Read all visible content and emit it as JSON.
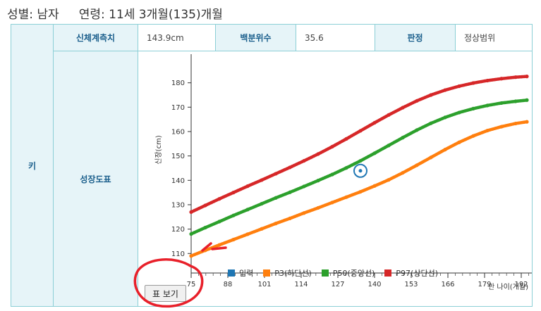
{
  "header": {
    "sex_label": "성별",
    "sex_value": "남자",
    "age_label": "연령",
    "age_value": "11세 3개월(135)개월"
  },
  "table": {
    "row_key": "키",
    "measure_label": "신체계측치",
    "measure_value": "143.9cm",
    "percentile_label": "백분위수",
    "percentile_value": "35.6",
    "judgement_label": "판정",
    "judgement_value": "정상범위",
    "growth_label": "성장도표"
  },
  "button": {
    "view_table": "표 보기"
  },
  "colors": {
    "input": "#1f77b4",
    "p3": "#ff7f0e",
    "p50": "#2ca02c",
    "p97": "#d62728",
    "accent": "#1b5f8c",
    "annotation": "#e8202a"
  },
  "chart_data": {
    "type": "line",
    "xlabel": "만 나이(개월)",
    "ylabel": "신장(cm)",
    "xlim": [
      75,
      195
    ],
    "ylim": [
      102,
      190
    ],
    "x_ticks": [
      75,
      88,
      101,
      114,
      127,
      140,
      153,
      166,
      179,
      192
    ],
    "y_ticks": [
      110,
      120,
      130,
      140,
      150,
      160,
      170,
      180
    ],
    "legend": [
      "입력",
      "P3(하단선)",
      "P50(중앙선)",
      "P97(상단선)"
    ],
    "legend_position": "bottom",
    "series": [
      {
        "name": "P3(하단선)",
        "x": [
          75,
          80,
          85,
          90,
          95,
          100,
          105,
          110,
          115,
          120,
          125,
          130,
          135,
          140,
          145,
          150,
          155,
          160,
          165,
          170,
          175,
          180,
          185,
          190,
          194
        ],
        "y": [
          109,
          111.3,
          113.5,
          115.7,
          117.9,
          120.1,
          122.3,
          124.4,
          126.6,
          128.7,
          130.9,
          133.1,
          135.3,
          137.7,
          140.2,
          143.1,
          146.2,
          149.4,
          152.6,
          155.6,
          158.2,
          160.4,
          162.0,
          163.3,
          164.0
        ]
      },
      {
        "name": "P50(중앙선)",
        "x": [
          75,
          80,
          85,
          90,
          95,
          100,
          105,
          110,
          115,
          120,
          125,
          130,
          135,
          140,
          145,
          150,
          155,
          160,
          165,
          170,
          175,
          180,
          185,
          190,
          194
        ],
        "y": [
          118,
          120.6,
          123.1,
          125.6,
          128.0,
          130.4,
          132.8,
          135.1,
          137.5,
          139.9,
          142.4,
          145.1,
          148.0,
          151.1,
          154.3,
          157.5,
          160.6,
          163.4,
          165.8,
          167.8,
          169.4,
          170.7,
          171.7,
          172.4,
          172.9
        ]
      },
      {
        "name": "P97(상단선)",
        "x": [
          75,
          80,
          85,
          90,
          95,
          100,
          105,
          110,
          115,
          120,
          125,
          130,
          135,
          140,
          145,
          150,
          155,
          160,
          165,
          170,
          175,
          180,
          185,
          190,
          194
        ],
        "y": [
          127,
          129.7,
          132.4,
          135.0,
          137.6,
          140.1,
          142.7,
          145.3,
          148.0,
          150.8,
          153.8,
          157.0,
          160.3,
          163.6,
          166.8,
          169.8,
          172.6,
          175.0,
          177.0,
          178.6,
          179.9,
          180.9,
          181.7,
          182.3,
          182.6
        ]
      }
    ],
    "input_point": {
      "x": 135,
      "y": 143.9
    }
  }
}
